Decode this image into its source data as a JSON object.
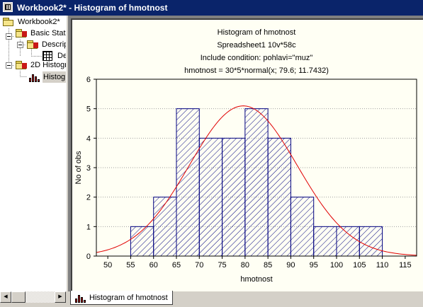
{
  "window": {
    "title": "Workbook2* - Histogram of hmotnost"
  },
  "tree": {
    "items": [
      {
        "label": "Workbook2*",
        "icon": "folder-icon"
      },
      {
        "label": "Basic Stati",
        "icon": "flagged-folder-icon"
      },
      {
        "label": "Descrip",
        "icon": "flagged-folder-icon"
      },
      {
        "label": "De",
        "icon": "spreadsheet-icon"
      },
      {
        "label": "2D Histogr",
        "icon": "flagged-folder-icon"
      },
      {
        "label": "Histog",
        "icon": "histogram-icon"
      }
    ],
    "selected_index": 5
  },
  "tab": {
    "label": "Histogram of hmotnost",
    "icon": "histogram-icon"
  },
  "chart_data": {
    "type": "bar",
    "title": "Histogram of hmotnost",
    "subtitle": [
      "Spreadsheet1 10v*58c",
      "Include condition: pohlavi=\"muz\"",
      "hmotnost = 30*5*normal(x; 79.6; 11.7432)"
    ],
    "xlabel": "hmotnost",
    "ylabel": "No of obs",
    "xlim": [
      47.5,
      117.5
    ],
    "ylim": [
      0,
      6
    ],
    "x_ticks": [
      50,
      55,
      60,
      65,
      70,
      75,
      80,
      85,
      90,
      95,
      100,
      105,
      110,
      115
    ],
    "y_ticks": [
      0,
      1,
      2,
      3,
      4,
      5,
      6
    ],
    "bins": [
      {
        "from": 55,
        "to": 60,
        "count": 1
      },
      {
        "from": 60,
        "to": 65,
        "count": 2
      },
      {
        "from": 65,
        "to": 70,
        "count": 5
      },
      {
        "from": 70,
        "to": 75,
        "count": 4
      },
      {
        "from": 75,
        "to": 80,
        "count": 4
      },
      {
        "from": 80,
        "to": 85,
        "count": 5
      },
      {
        "from": 85,
        "to": 90,
        "count": 4
      },
      {
        "from": 90,
        "to": 95,
        "count": 2
      },
      {
        "from": 95,
        "to": 100,
        "count": 1
      },
      {
        "from": 100,
        "to": 105,
        "count": 1
      },
      {
        "from": 105,
        "to": 110,
        "count": 1
      }
    ],
    "fit_curve": {
      "type": "normal",
      "scale": 150,
      "mean": 79.6,
      "sd": 11.7432
    },
    "grid": true,
    "colors": {
      "bar_stroke": "#000080",
      "hatch": "#000080",
      "curve": "#e00000",
      "grid": "#a0a0a0",
      "background": "#fffff4"
    }
  }
}
